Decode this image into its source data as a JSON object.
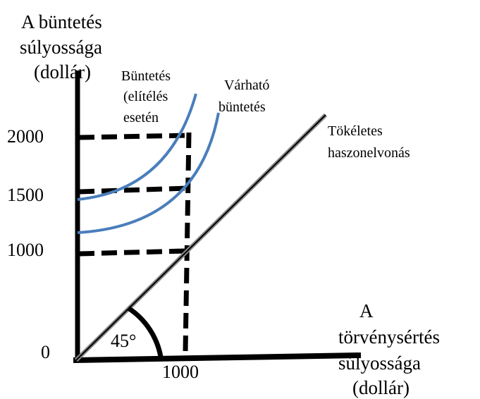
{
  "y_axis": {
    "label": [
      "A büntetés",
      "súlyossága",
      "(dollár)"
    ],
    "ticks": [
      "2000",
      "1500",
      "1000",
      "0"
    ]
  },
  "x_axis": {
    "label": [
      "A",
      "törvénysértés",
      "súlyossága",
      "(dollár)"
    ],
    "ticks": [
      "1000"
    ]
  },
  "curves": {
    "penalty": [
      "Büntetés",
      "(elítélés",
      "esetén"
    ],
    "expected": [
      "Várható",
      "büntetés"
    ]
  },
  "line": {
    "label": [
      "Tökéletes",
      "haszonelvonás"
    ]
  },
  "angle": "45°"
}
